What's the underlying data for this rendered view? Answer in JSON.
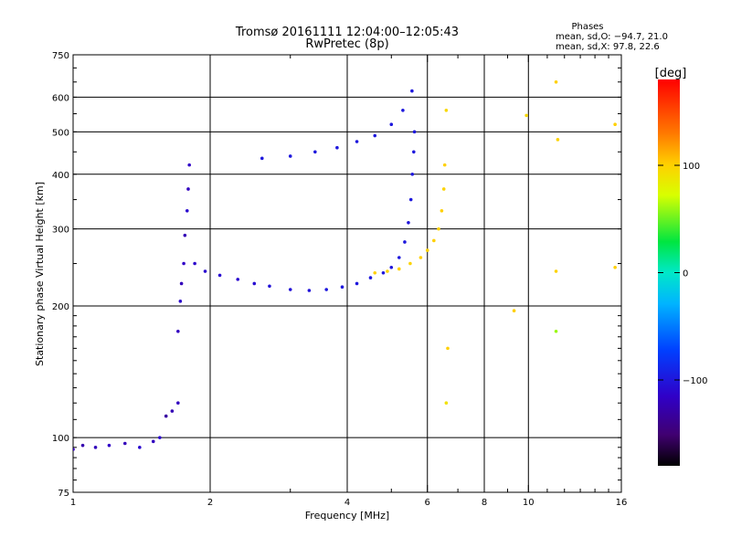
{
  "chart_data": {
    "type": "scatter",
    "title": "Tromsø 20161111 12:04:00–12:05:43",
    "subtitle": "RwPretec (8p)",
    "xlabel": "Frequency [MHz]",
    "ylabel": "Stationary phase Virtual Height [km]",
    "x_scale": "log",
    "y_scale": "log",
    "xlim": [
      1,
      16
    ],
    "ylim": [
      75,
      750
    ],
    "x_ticks": [
      "1",
      "2",
      "4",
      "6",
      "8",
      "10",
      "16"
    ],
    "y_ticks": [
      "75",
      "100",
      "200",
      "300",
      "400",
      "500",
      "600",
      "750"
    ],
    "grid": true,
    "colorbar": {
      "label": "[deg]",
      "range": [
        -180,
        180
      ],
      "ticks": [
        "100",
        "0",
        "−100"
      ]
    },
    "stats": {
      "heading": "Phases",
      "o_line": "mean, sd,O: −94.7, 21.0",
      "x_line": "mean, sd,X:  97.8, 22.6"
    },
    "series": [
      {
        "mode": "O",
        "mean_phase": -94.7,
        "sd_phase": 21.0,
        "points": [
          [
            1.0,
            94,
            -120
          ],
          [
            1.05,
            96,
            -125
          ],
          [
            1.12,
            95,
            -120
          ],
          [
            1.2,
            96,
            -115
          ],
          [
            1.3,
            97,
            -120
          ],
          [
            1.4,
            95,
            -110
          ],
          [
            1.5,
            98,
            -118
          ],
          [
            1.55,
            100,
            -110
          ],
          [
            1.6,
            112,
            -130
          ],
          [
            1.65,
            115,
            -122
          ],
          [
            1.7,
            120,
            -118
          ],
          [
            1.7,
            175,
            -118
          ],
          [
            1.72,
            205,
            -112
          ],
          [
            1.73,
            225,
            -120
          ],
          [
            1.75,
            250,
            -115
          ],
          [
            1.76,
            290,
            -122
          ],
          [
            1.78,
            330,
            -110
          ],
          [
            1.79,
            370,
            -118
          ],
          [
            1.8,
            420,
            -115
          ],
          [
            1.85,
            250,
            -112
          ],
          [
            1.95,
            240,
            -110
          ],
          [
            2.1,
            235,
            -108
          ],
          [
            2.3,
            230,
            -110
          ],
          [
            2.5,
            225,
            -108
          ],
          [
            2.7,
            222,
            -104
          ],
          [
            3.0,
            218,
            -104
          ],
          [
            3.3,
            217,
            -103
          ],
          [
            3.6,
            218,
            -100
          ],
          [
            3.9,
            221,
            -100
          ],
          [
            4.2,
            225,
            -100
          ],
          [
            4.5,
            232,
            -100
          ],
          [
            4.8,
            238,
            -100
          ],
          [
            5.0,
            245,
            -102
          ],
          [
            5.2,
            258,
            -100
          ],
          [
            5.35,
            280,
            -100
          ],
          [
            5.45,
            310,
            -102
          ],
          [
            5.52,
            350,
            -100
          ],
          [
            5.56,
            400,
            -100
          ],
          [
            5.6,
            450,
            -100
          ],
          [
            5.62,
            500,
            -100
          ],
          [
            2.6,
            435,
            -100
          ],
          [
            3.0,
            440,
            -100
          ],
          [
            3.4,
            450,
            -100
          ],
          [
            3.8,
            460,
            -100
          ],
          [
            4.2,
            475,
            -100
          ],
          [
            4.6,
            490,
            -100
          ],
          [
            5.0,
            520,
            -100
          ],
          [
            5.3,
            560,
            -100
          ],
          [
            5.55,
            620,
            -100
          ]
        ]
      },
      {
        "mode": "X",
        "mean_phase": 97.8,
        "sd_phase": 22.6,
        "points": [
          [
            4.6,
            238,
            100
          ],
          [
            4.9,
            240,
            98
          ],
          [
            5.2,
            243,
            100
          ],
          [
            5.5,
            250,
            98
          ],
          [
            5.8,
            258,
            100
          ],
          [
            6.0,
            268,
            98
          ],
          [
            6.2,
            282,
            100
          ],
          [
            6.35,
            300,
            98
          ],
          [
            6.45,
            330,
            100
          ],
          [
            6.52,
            370,
            98
          ],
          [
            6.55,
            420,
            100
          ],
          [
            6.6,
            120,
            90
          ],
          [
            6.65,
            160,
            100
          ],
          [
            6.6,
            560,
            95
          ],
          [
            11.5,
            650,
            100
          ],
          [
            11.6,
            480,
            98
          ],
          [
            9.9,
            545,
            95
          ],
          [
            15.5,
            520,
            100
          ],
          [
            15.5,
            245,
            100
          ],
          [
            11.5,
            240,
            98
          ],
          [
            9.3,
            195,
            100
          ],
          [
            11.5,
            175,
            60
          ]
        ]
      }
    ]
  }
}
